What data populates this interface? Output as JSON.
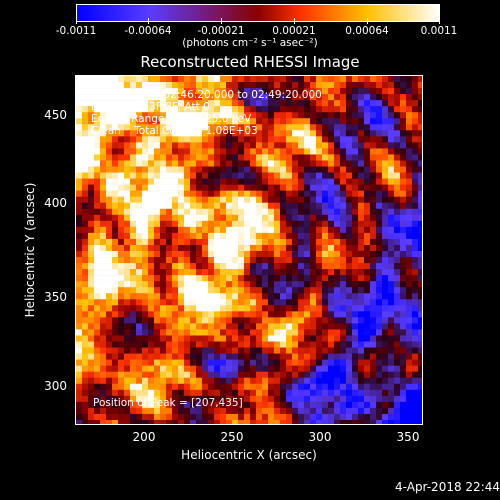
{
  "window": {
    "title": "Reconstructed RHESSI Image"
  },
  "colorbar": {
    "min": -0.0011,
    "max": 0.0011,
    "tick_labels": [
      "-0.0011",
      "-0.00064",
      "-0.00021",
      "0.00021",
      "0.00064",
      "0.0011"
    ],
    "units_label": "(photons cm⁻² s⁻¹ asec⁻²)",
    "colors": [
      "#0000ff",
      "#5a3cff",
      "#8a0000",
      "#ff3300",
      "#ffbf00",
      "#ffffff"
    ]
  },
  "plot": {
    "x_axis_label": "Heliocentric X (arcsec)",
    "y_axis_label": "Heliocentric Y (arcsec)",
    "x_ticks": [
      "200",
      "250",
      "300",
      "350"
    ],
    "y_ticks": [
      "450",
      "400",
      "350",
      "300"
    ],
    "info_lines": [
      "15-May-2016 02:46:20.000 to 02:49:20.000",
      "Detectors: 3F 8F, Att 0",
      "Energy Range: 12.0 - 25.0 keV",
      "Clean    Total Counts: 1.08E+03"
    ],
    "peak_position": "Position of Peak = [207,435]"
  },
  "footer": {
    "timestamp": "4-Apr-2018 22:44"
  },
  "chart_data": {
    "type": "heatmap",
    "title": "Reconstructed RHESSI Image",
    "xlabel": "Heliocentric X (arcsec)",
    "ylabel": "Heliocentric Y (arcsec)",
    "xlim": [
      160,
      355
    ],
    "ylim": [
      288,
      475
    ],
    "peak_position": [
      207,
      435
    ],
    "value_range": [
      -0.0011,
      0.0011
    ]
  }
}
